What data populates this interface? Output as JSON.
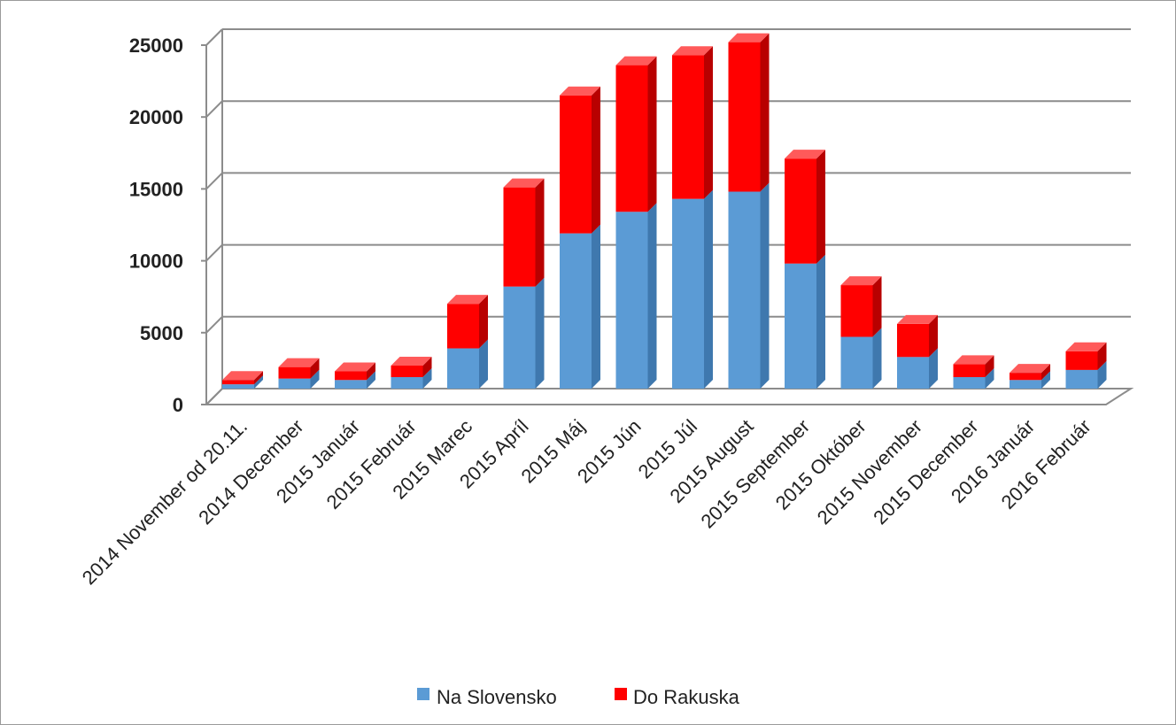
{
  "chart_data": {
    "type": "bar",
    "stacked": true,
    "style": "3d",
    "categories": [
      "2014  November od 20.11.",
      "2014  December",
      "2015  Január",
      "2015  Február",
      "2015  Marec",
      "2015  Apríl",
      "2015  Máj",
      "2015  Jún",
      "2015  Júl",
      "2015  August",
      "2015  September",
      "2015  Október",
      "2015  November",
      "2015  December",
      "2016  Január",
      "2016  Február"
    ],
    "series": [
      {
        "name": "Na Slovensko",
        "color": "#5B9BD5",
        "values": [
          300,
          700,
          600,
          800,
          2800,
          7100,
          10800,
          12300,
          13200,
          13700,
          8700,
          3600,
          2200,
          800,
          600,
          1300
        ]
      },
      {
        "name": "Do Rakuska",
        "color": "#FF0000",
        "values": [
          300,
          800,
          600,
          800,
          3100,
          6900,
          9600,
          10200,
          10000,
          10400,
          7300,
          3600,
          2300,
          900,
          500,
          1300
        ]
      }
    ],
    "ylim": [
      0,
      25000
    ],
    "yticks": [
      "0",
      "5000",
      "10000",
      "15000",
      "20000",
      "25000"
    ],
    "grid": true,
    "legend_position": "bottom"
  }
}
